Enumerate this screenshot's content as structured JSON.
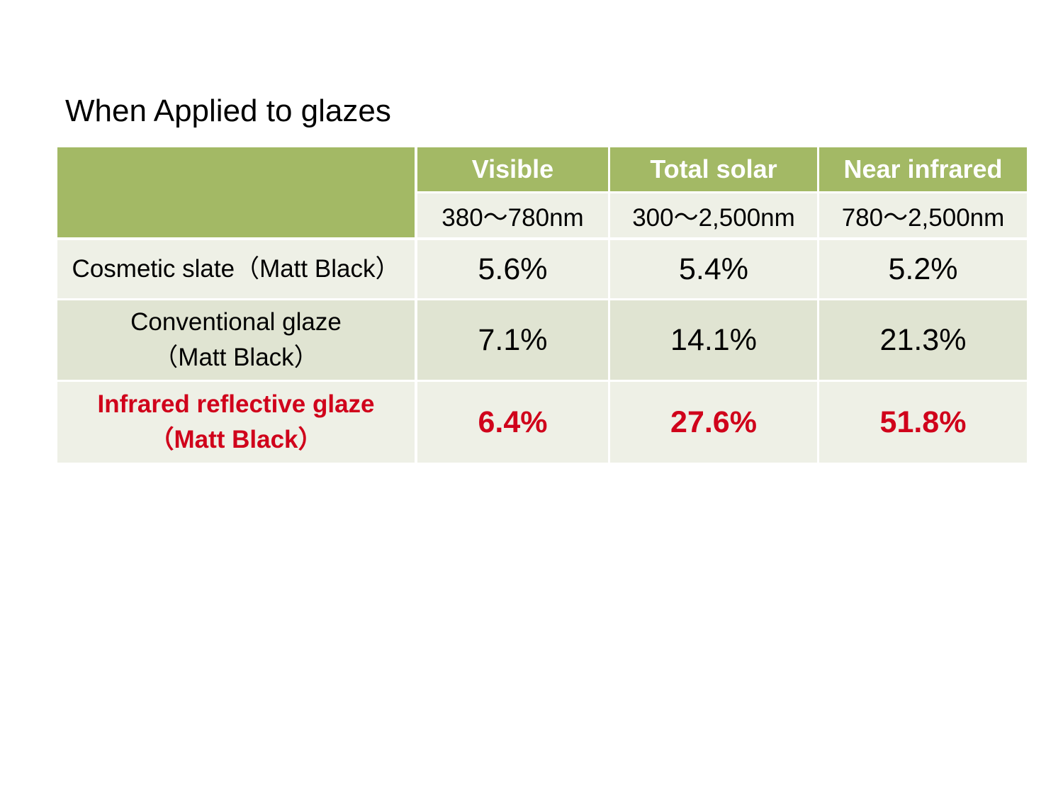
{
  "title": "When Applied to glazes",
  "columns": [
    {
      "name": "Visible",
      "range": "380～780nm"
    },
    {
      "name": "Total solar",
      "range": "300～2,500nm"
    },
    {
      "name": "Near infrared",
      "range": "780～2,500nm"
    }
  ],
  "rows": [
    {
      "label_line1": "Cosmetic slate（Matt Black）",
      "label_line2": "",
      "values": [
        "5.6%",
        "5.4%",
        "5.2%"
      ],
      "highlight": false
    },
    {
      "label_line1": "Conventional glaze",
      "label_line2": "（Matt Black）",
      "values": [
        "7.1%",
        "14.1%",
        "21.3%"
      ],
      "highlight": false
    },
    {
      "label_line1": "Infrared reflective glaze",
      "label_line2": "（Matt Black）",
      "values": [
        "6.4%",
        "27.6%",
        "51.8%"
      ],
      "highlight": true
    }
  ],
  "colors": {
    "header_green": "#a3b965",
    "row_light": "#eef0e6",
    "row_dark": "#e0e4d2",
    "highlight_red": "#d0021b"
  }
}
